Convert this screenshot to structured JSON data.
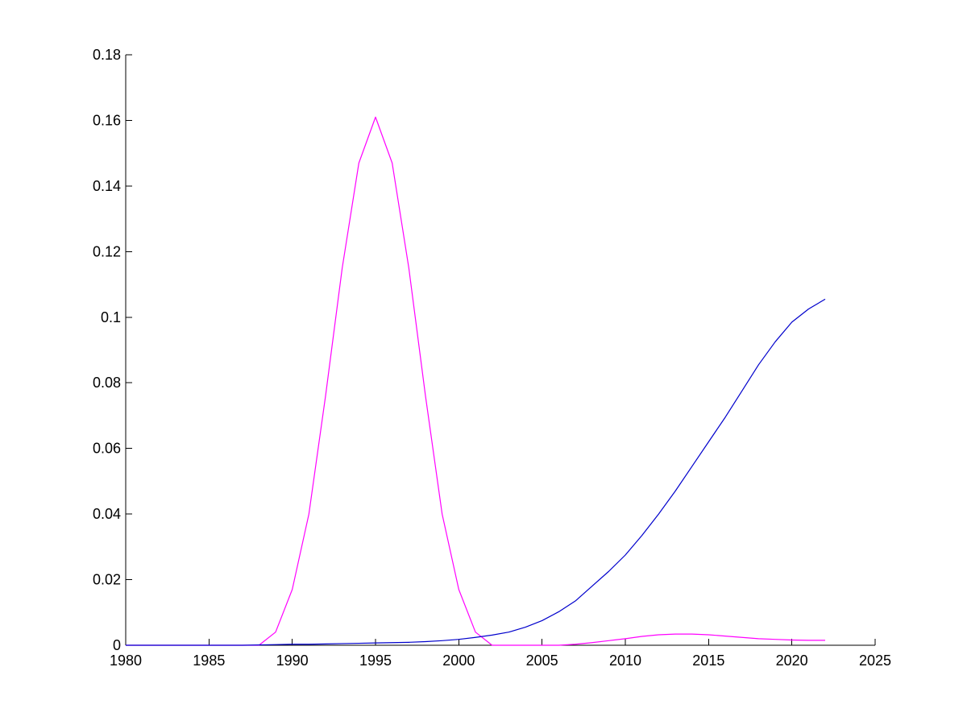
{
  "chart_data": {
    "type": "line",
    "title": "",
    "xlabel": "",
    "ylabel": "",
    "xlim": [
      1980,
      2025
    ],
    "ylim": [
      0,
      0.18
    ],
    "grid": false,
    "legend": "none",
    "x_ticks": [
      1980,
      1985,
      1990,
      1995,
      2000,
      2005,
      2010,
      2015,
      2020,
      2025
    ],
    "y_ticks": [
      0,
      0.02,
      0.04,
      0.06,
      0.08,
      0.1,
      0.12,
      0.14,
      0.16,
      0.18
    ],
    "x_tick_labels": [
      "1980",
      "1985",
      "1990",
      "1995",
      "2000",
      "2005",
      "2010",
      "2015",
      "2020",
      "2025"
    ],
    "y_tick_labels": [
      "0",
      "0.02",
      "0.04",
      "0.06",
      "0.08",
      "0.1",
      "0.12",
      "0.14",
      "0.16",
      "0.18"
    ],
    "series": [
      {
        "color": "#ff00ff",
        "x": [
          1980,
          1981,
          1982,
          1983,
          1984,
          1985,
          1986,
          1987,
          1988,
          1989,
          1990,
          1991,
          1992,
          1993,
          1994,
          1995,
          1996,
          1997,
          1998,
          1999,
          2000,
          2001,
          2002,
          2003,
          2004,
          2005,
          2006,
          2007,
          2008,
          2009,
          2010,
          2011,
          2012,
          2013,
          2014,
          2015,
          2016,
          2017,
          2018,
          2019,
          2020,
          2021,
          2022
        ],
        "y": [
          0,
          0,
          0,
          0,
          0,
          0,
          0,
          0,
          0,
          0.004,
          0.017,
          0.04,
          0.076,
          0.115,
          0.147,
          0.161,
          0.147,
          0.115,
          0.076,
          0.04,
          0.017,
          0.004,
          0,
          0,
          0,
          0,
          0,
          0.0003,
          0.0008,
          0.0014,
          0.002,
          0.0027,
          0.0032,
          0.0034,
          0.0034,
          0.0032,
          0.0028,
          0.0024,
          0.002,
          0.0018,
          0.0016,
          0.0015,
          0.0015
        ]
      },
      {
        "color": "#0000cc",
        "x": [
          1980,
          1981,
          1982,
          1983,
          1984,
          1985,
          1986,
          1987,
          1988,
          1989,
          1990,
          1991,
          1992,
          1993,
          1994,
          1995,
          1996,
          1997,
          1998,
          1999,
          2000,
          2001,
          2002,
          2003,
          2004,
          2005,
          2006,
          2007,
          2008,
          2009,
          2010,
          2011,
          2012,
          2013,
          2014,
          2015,
          2016,
          2017,
          2018,
          2019,
          2020,
          2021,
          2022
        ],
        "y": [
          0,
          0,
          0,
          0,
          0,
          0,
          0,
          0,
          0.0001,
          0.0002,
          0.0003,
          0.0003,
          0.0004,
          0.0005,
          0.0006,
          0.0007,
          0.0008,
          0.0009,
          0.0011,
          0.0014,
          0.0018,
          0.0024,
          0.0031,
          0.004,
          0.0055,
          0.0075,
          0.0102,
          0.0135,
          0.018,
          0.0225,
          0.0275,
          0.0335,
          0.04,
          0.047,
          0.0545,
          0.062,
          0.0695,
          0.0775,
          0.0855,
          0.0925,
          0.0985,
          0.1025,
          0.1055
        ]
      }
    ]
  }
}
